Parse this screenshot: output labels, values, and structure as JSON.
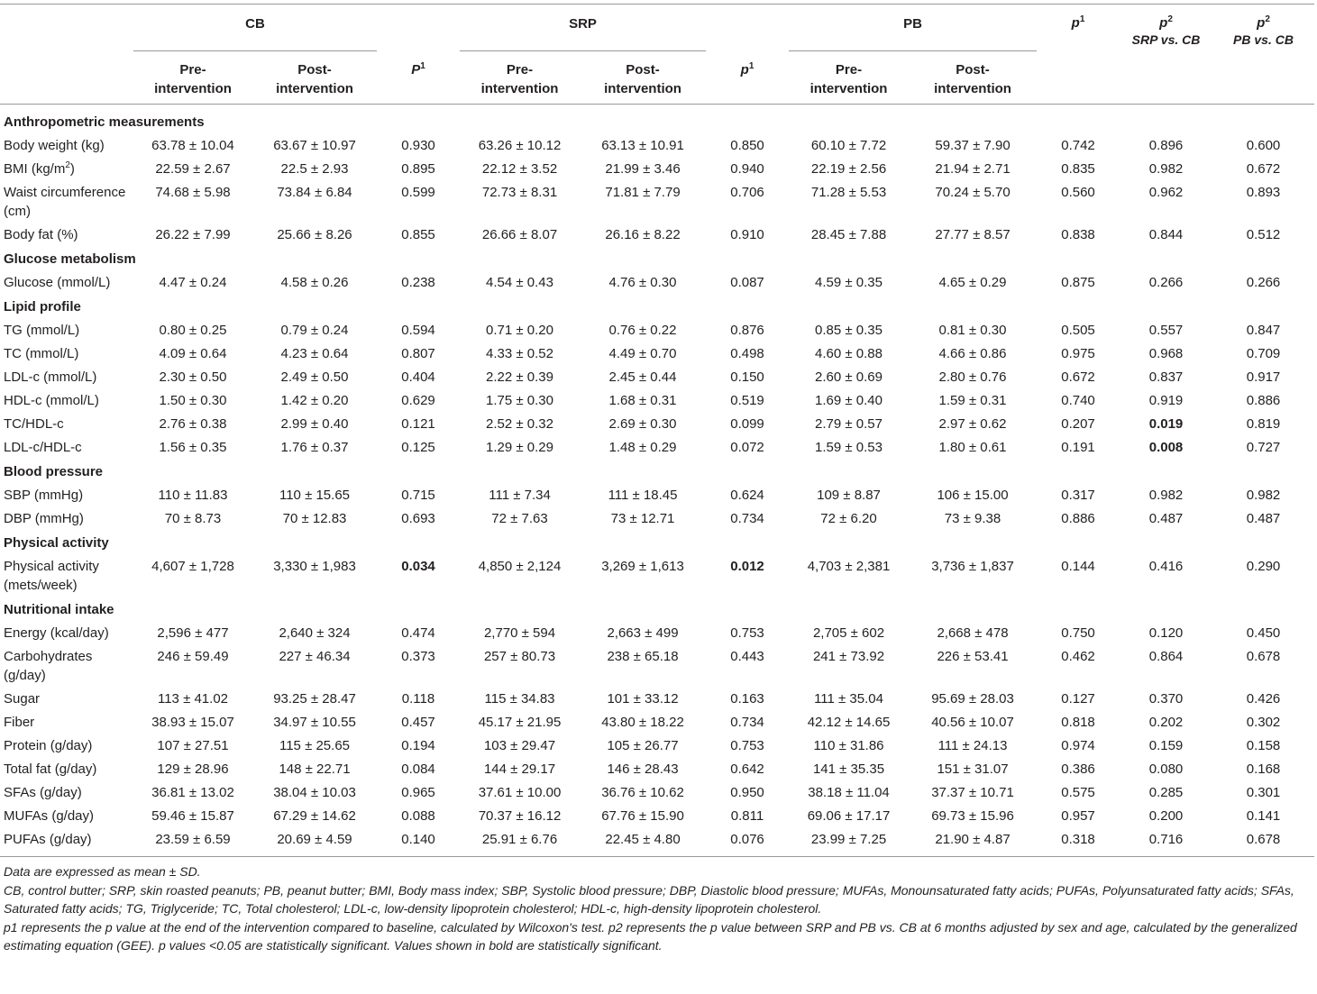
{
  "header": {
    "groups": [
      {
        "name": "CB",
        "pre": "Pre-\nintervention",
        "post": "Post-\nintervention",
        "p": {
          "text": "P",
          "sup": "1"
        }
      },
      {
        "name": "SRP",
        "pre": "Pre-\nintervention",
        "post": "Post-\nintervention",
        "p": {
          "text": "p",
          "sup": "1"
        }
      },
      {
        "name": "PB",
        "pre": "Pre-\nintervention",
        "post": "Post-\nintervention"
      }
    ],
    "extra": [
      {
        "text": "p",
        "sup": "1"
      },
      {
        "text": "p",
        "sup": "2",
        "note": "SRP vs. CB"
      },
      {
        "text": "p",
        "sup": "2",
        "note": "PB vs. CB"
      }
    ]
  },
  "sections": [
    {
      "title": "Anthropometric measurements",
      "rows": [
        {
          "label": "Body weight (kg)",
          "cells": [
            "63.78 ± 10.04",
            "63.67 ± 10.97",
            "0.930",
            "63.26 ± 10.12",
            "63.13 ± 10.91",
            "0.850",
            "60.10 ± 7.72",
            "59.37 ± 7.90",
            "0.742",
            "0.896",
            "0.600"
          ]
        },
        {
          "label": "BMI (kg/m",
          "label_sup": "2",
          "label_end": ")",
          "cells": [
            "22.59 ± 2.67",
            "22.5 ± 2.93",
            "0.895",
            "22.12 ± 3.52",
            "21.99 ± 3.46",
            "0.940",
            "22.19 ± 2.56",
            "21.94 ± 2.71",
            "0.835",
            "0.982",
            "0.672"
          ]
        },
        {
          "label": "Waist circumference (cm)",
          "cells": [
            "74.68 ± 5.98",
            "73.84 ± 6.84",
            "0.599",
            "72.73 ± 8.31",
            "71.81 ± 7.79",
            "0.706",
            "71.28 ± 5.53",
            "70.24 ± 5.70",
            "0.560",
            "0.962",
            "0.893"
          ]
        },
        {
          "label": "Body fat (%)",
          "cells": [
            "26.22 ± 7.99",
            "25.66 ± 8.26",
            "0.855",
            "26.66 ± 8.07",
            "26.16 ± 8.22",
            "0.910",
            "28.45 ± 7.88",
            "27.77 ± 8.57",
            "0.838",
            "0.844",
            "0.512"
          ]
        }
      ]
    },
    {
      "title": "Glucose metabolism",
      "rows": [
        {
          "label": "Glucose (mmol/L)",
          "cells": [
            "4.47 ± 0.24",
            "4.58 ± 0.26",
            "0.238",
            "4.54 ± 0.43",
            "4.76 ± 0.30",
            "0.087",
            "4.59 ± 0.35",
            "4.65 ± 0.29",
            "0.875",
            "0.266",
            "0.266"
          ]
        }
      ]
    },
    {
      "title": "Lipid profile",
      "rows": [
        {
          "label": "TG (mmol/L)",
          "cells": [
            "0.80 ± 0.25",
            "0.79 ± 0.24",
            "0.594",
            "0.71 ± 0.20",
            "0.76 ± 0.22",
            "0.876",
            "0.85 ± 0.35",
            "0.81 ± 0.30",
            "0.505",
            "0.557",
            "0.847"
          ]
        },
        {
          "label": "TC (mmol/L)",
          "cells": [
            "4.09 ± 0.64",
            "4.23 ± 0.64",
            "0.807",
            "4.33 ± 0.52",
            "4.49 ± 0.70",
            "0.498",
            "4.60 ± 0.88",
            "4.66 ± 0.86",
            "0.975",
            "0.968",
            "0.709"
          ]
        },
        {
          "label": "LDL-c (mmol/L)",
          "cells": [
            "2.30 ± 0.50",
            "2.49 ± 0.50",
            "0.404",
            "2.22 ± 0.39",
            "2.45 ± 0.44",
            "0.150",
            "2.60 ± 0.69",
            "2.80 ± 0.76",
            "0.672",
            "0.837",
            "0.917"
          ]
        },
        {
          "label": "HDL-c (mmol/L)",
          "cells": [
            "1.50 ± 0.30",
            "1.42 ± 0.20",
            "0.629",
            "1.75 ± 0.30",
            "1.68 ± 0.31",
            "0.519",
            "1.69 ± 0.40",
            "1.59 ± 0.31",
            "0.740",
            "0.919",
            "0.886"
          ]
        },
        {
          "label": "TC/HDL-c",
          "cells": [
            "2.76 ± 0.38",
            "2.99 ± 0.40",
            "0.121",
            "2.52 ± 0.32",
            "2.69 ± 0.30",
            "0.099",
            "2.79 ± 0.57",
            "2.97 ± 0.62",
            "0.207",
            "0.019",
            "0.819"
          ],
          "bold": [
            9
          ]
        },
        {
          "label": "LDL-c/HDL-c",
          "cells": [
            "1.56 ± 0.35",
            "1.76 ± 0.37",
            "0.125",
            "1.29 ± 0.29",
            "1.48 ± 0.29",
            "0.072",
            "1.59 ± 0.53",
            "1.80 ± 0.61",
            "0.191",
            "0.008",
            "0.727"
          ],
          "bold": [
            9
          ]
        }
      ]
    },
    {
      "title": "Blood pressure",
      "rows": [
        {
          "label": "SBP (mmHg)",
          "cells": [
            "110 ± 11.83",
            "110 ± 15.65",
            "0.715",
            "111 ± 7.34",
            "111 ± 18.45",
            "0.624",
            "109 ± 8.87",
            "106 ± 15.00",
            "0.317",
            "0.982",
            "0.982"
          ]
        },
        {
          "label": "DBP (mmHg)",
          "cells": [
            "70 ± 8.73",
            "70 ± 12.83",
            "0.693",
            "72 ± 7.63",
            "73 ± 12.71",
            "0.734",
            "72 ± 6.20",
            "73 ± 9.38",
            "0.886",
            "0.487",
            "0.487"
          ]
        }
      ]
    },
    {
      "title": "Physical activity",
      "rows": [
        {
          "label": "Physical activity (mets/week)",
          "cells": [
            "4,607 ± 1,728",
            "3,330 ± 1,983",
            "0.034",
            "4,850 ± 2,124",
            "3,269 ± 1,613",
            "0.012",
            "4,703 ± 2,381",
            "3,736 ± 1,837",
            "0.144",
            "0.416",
            "0.290"
          ],
          "bold": [
            2,
            5
          ]
        }
      ]
    },
    {
      "title": "Nutritional intake",
      "rows": [
        {
          "label": "Energy (kcal/day)",
          "cells": [
            "2,596 ± 477",
            "2,640 ± 324",
            "0.474",
            "2,770 ± 594",
            "2,663 ± 499",
            "0.753",
            "2,705 ± 602",
            "2,668 ± 478",
            "0.750",
            "0.120",
            "0.450"
          ]
        },
        {
          "label": "Carbohydrates (g/day)",
          "cells": [
            "246 ± 59.49",
            "227 ± 46.34",
            "0.373",
            "257 ± 80.73",
            "238 ± 65.18",
            "0.443",
            "241 ± 73.92",
            "226 ± 53.41",
            "0.462",
            "0.864",
            "0.678"
          ]
        },
        {
          "label": "Sugar",
          "cells": [
            "113 ± 41.02",
            "93.25 ± 28.47",
            "0.118",
            "115 ± 34.83",
            "101 ± 33.12",
            "0.163",
            "111 ± 35.04",
            "95.69 ± 28.03",
            "0.127",
            "0.370",
            "0.426"
          ]
        },
        {
          "label": "Fiber",
          "cells": [
            "38.93 ± 15.07",
            "34.97 ± 10.55",
            "0.457",
            "45.17 ± 21.95",
            "43.80 ± 18.22",
            "0.734",
            "42.12 ± 14.65",
            "40.56 ± 10.07",
            "0.818",
            "0.202",
            "0.302"
          ]
        },
        {
          "label": "Protein (g/day)",
          "cells": [
            "107 ± 27.51",
            "115 ± 25.65",
            "0.194",
            "103 ± 29.47",
            "105 ± 26.77",
            "0.753",
            "110 ± 31.86",
            "111 ± 24.13",
            "0.974",
            "0.159",
            "0.158"
          ]
        },
        {
          "label": "Total fat (g/day)",
          "cells": [
            "129 ± 28.96",
            "148 ± 22.71",
            "0.084",
            "144 ± 29.17",
            "146 ± 28.43",
            "0.642",
            "141 ± 35.35",
            "151 ± 31.07",
            "0.386",
            "0.080",
            "0.168"
          ]
        },
        {
          "label": "SFAs (g/day)",
          "cells": [
            "36.81 ± 13.02",
            "38.04 ± 10.03",
            "0.965",
            "37.61 ± 10.00",
            "36.76 ± 10.62",
            "0.950",
            "38.18 ± 11.04",
            "37.37 ± 10.71",
            "0.575",
            "0.285",
            "0.301"
          ]
        },
        {
          "label": "MUFAs (g/day)",
          "cells": [
            "59.46 ± 15.87",
            "67.29 ± 14.62",
            "0.088",
            "70.37 ± 16.12",
            "67.76 ± 15.90",
            "0.811",
            "69.06 ± 17.17",
            "69.73 ± 15.96",
            "0.957",
            "0.200",
            "0.141"
          ]
        },
        {
          "label": "PUFAs (g/day)",
          "cells": [
            "23.59 ± 6.59",
            "20.69 ± 4.59",
            "0.140",
            "25.91 ± 6.76",
            "22.45 ± 4.80",
            "0.076",
            "23.99 ± 7.25",
            "21.90 ± 4.87",
            "0.318",
            "0.716",
            "0.678"
          ]
        }
      ]
    }
  ],
  "footnotes": [
    "Data are expressed as mean ± SD.",
    "CB, control butter; SRP, skin roasted peanuts; PB, peanut butter; BMI, Body mass index; SBP, Systolic blood pressure; DBP, Diastolic blood pressure; MUFAs, Monounsaturated fatty acids; PUFAs, Polyunsaturated fatty acids; SFAs, Saturated fatty acids; TG, Triglyceride; TC, Total cholesterol; LDL-c, low-density lipoprotein cholesterol; HDL-c, high-density lipoprotein cholesterol.",
    "p1 represents the p value at the end of the intervention compared to baseline, calculated by Wilcoxon's test. p2 represents the p value between SRP and PB vs. CB at 6 months adjusted by sex and age, calculated by the generalized estimating equation (GEE). p values <0.05 are statistically significant. Values shown in bold are statistically significant."
  ]
}
